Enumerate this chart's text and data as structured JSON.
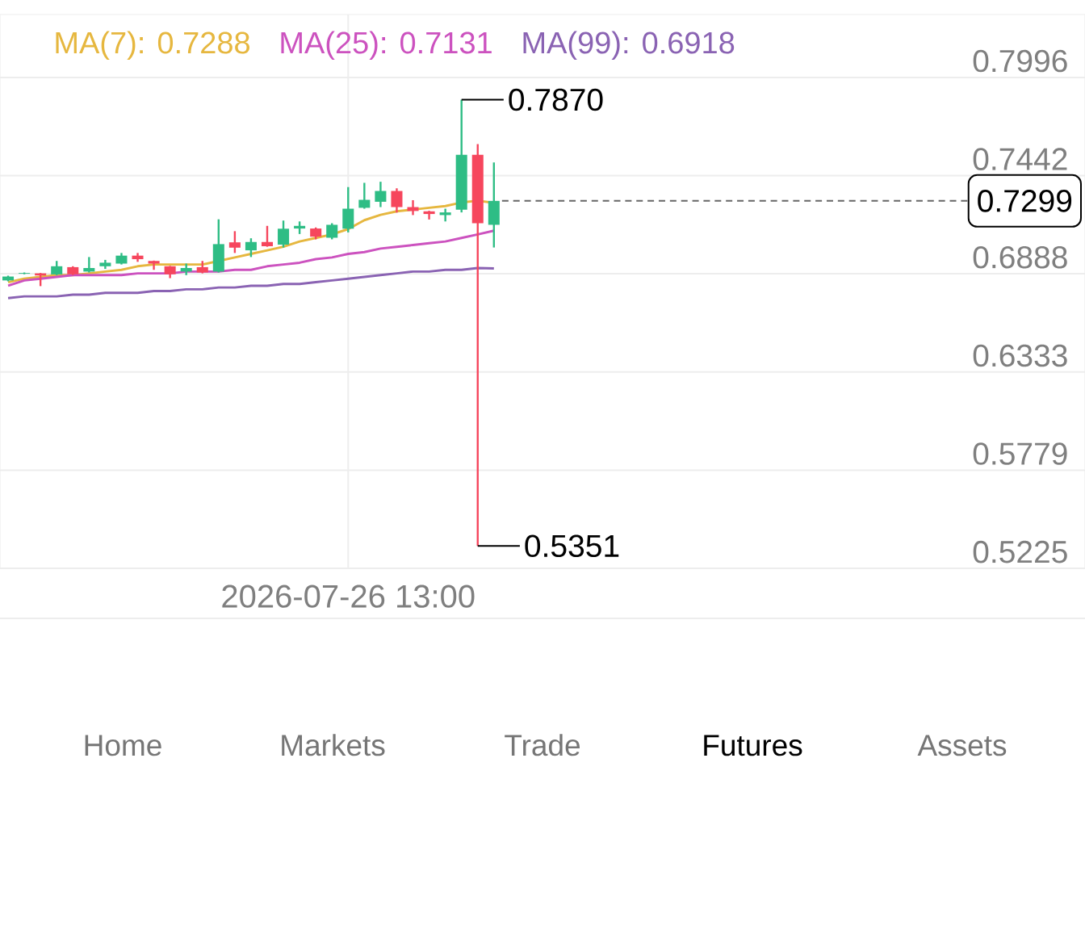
{
  "chart_data": {
    "type": "candlestick",
    "categories": [
      null,
      null,
      null,
      null,
      null,
      null,
      null,
      null,
      null,
      null,
      null,
      null,
      null,
      null,
      null,
      null,
      null,
      null,
      null,
      null,
      null,
      "2026-07-26 13:00",
      null,
      null,
      null,
      null,
      null,
      null,
      null,
      null,
      null,
      null,
      null,
      null,
      null,
      null,
      null,
      null,
      null,
      null,
      null,
      null,
      null,
      null,
      null,
      null,
      null,
      null,
      null,
      null,
      null,
      null,
      null,
      null,
      null,
      null,
      null,
      null,
      null,
      null,
      null,
      null,
      null,
      null,
      null,
      null,
      null
    ],
    "ohlc": [
      [
        0.685,
        0.6877,
        0.6845,
        0.6872
      ],
      [
        0.6888,
        0.6895,
        0.6885,
        0.6892
      ],
      [
        0.689,
        0.6892,
        0.6818,
        0.6878
      ],
      [
        0.6884,
        0.696,
        0.688,
        0.693
      ],
      [
        0.6925,
        0.693,
        0.688,
        0.6885
      ],
      [
        0.69,
        0.6982,
        0.6895,
        0.692
      ],
      [
        0.693,
        0.6966,
        0.6915,
        0.695
      ],
      [
        0.6945,
        0.7005,
        0.694,
        0.699
      ],
      [
        0.699,
        0.7005,
        0.6955,
        0.697
      ],
      [
        0.696,
        0.6962,
        0.691,
        0.6945
      ],
      [
        0.693,
        0.6932,
        0.6863,
        0.6885
      ],
      [
        0.69,
        0.6945,
        0.688,
        0.692
      ],
      [
        0.6925,
        0.696,
        0.689,
        0.6895
      ],
      [
        0.69,
        0.7195,
        0.6895,
        0.7055
      ],
      [
        0.7065,
        0.7128,
        0.7005,
        0.7035
      ],
      [
        0.702,
        0.7088,
        0.6982,
        0.7067
      ],
      [
        0.7067,
        0.7158,
        0.704,
        0.7043
      ],
      [
        0.7052,
        0.7188,
        0.7036,
        0.7142
      ],
      [
        0.7143,
        0.7183,
        0.7112,
        0.7158
      ],
      [
        0.7143,
        0.7149,
        0.7082,
        0.7097
      ],
      [
        0.7091,
        0.7173,
        0.7082,
        0.7164
      ],
      [
        0.7142,
        0.7377,
        0.7121,
        0.7255
      ],
      [
        0.726,
        0.7401,
        0.7255,
        0.7305
      ],
      [
        0.7294,
        0.7407,
        0.7264,
        0.7355
      ],
      [
        0.7355,
        0.737,
        0.7233,
        0.7264
      ],
      [
        0.7264,
        0.7303,
        0.7219,
        0.7242
      ],
      [
        0.724,
        0.7243,
        0.7194,
        0.7225
      ],
      [
        0.7219,
        0.7255,
        0.7183,
        0.7234
      ],
      [
        0.7249,
        0.787,
        0.7234,
        0.7559
      ],
      [
        0.7559,
        0.762,
        0.5351,
        0.7173
      ],
      [
        0.7164,
        0.7516,
        0.7036,
        0.7299
      ],
      null,
      null,
      null,
      null,
      null,
      null,
      null,
      null,
      null,
      null,
      null,
      null,
      null,
      null,
      null,
      null,
      null,
      null,
      null,
      null,
      null,
      null,
      null,
      null,
      null,
      null,
      null,
      null,
      null,
      null,
      null,
      null,
      null,
      null,
      null,
      null
    ],
    "colors": [
      "#2ebd85",
      "#2ebd85",
      "#f6465d",
      "#2ebd85",
      "#f6465d",
      "#2ebd85",
      "#2ebd85",
      "#2ebd85",
      "#f6465d",
      "#f6465d",
      "#f6465d",
      "#2ebd85",
      "#f6465d",
      "#2ebd85",
      "#f6465d",
      "#2ebd85",
      "#f6465d",
      "#2ebd85",
      "#2ebd85",
      "#f6465d",
      "#2ebd85",
      "#2ebd85",
      "#2ebd85",
      "#2ebd85",
      "#f6465d",
      "#f6465d",
      "#f6465d",
      "#2ebd85",
      "#2ebd85",
      "#f6465d",
      "#2ebd85",
      null,
      null,
      null,
      null,
      null,
      null,
      null,
      null,
      null,
      null,
      null,
      null,
      null,
      null,
      null,
      null,
      null,
      null,
      null,
      null,
      null,
      null,
      null,
      null,
      null,
      null,
      null,
      null,
      null,
      null,
      null,
      null,
      null,
      null,
      null,
      null
    ],
    "series": [
      {
        "name": "MA(7): 0.7288",
        "type": "line",
        "color": "#e6b73f",
        "values": [
          0.684,
          0.686,
          0.687,
          0.688,
          0.688,
          0.689,
          0.69,
          0.691,
          0.693,
          0.694,
          0.694,
          0.694,
          0.694,
          0.696,
          0.698,
          0.7,
          0.702,
          0.704,
          0.707,
          0.709,
          0.711,
          0.714,
          0.719,
          0.722,
          0.724,
          0.725,
          0.726,
          0.727,
          0.729,
          0.73,
          0.7288,
          null,
          null,
          null,
          null,
          null,
          null,
          null,
          null,
          null,
          null,
          null,
          null,
          null,
          null,
          null,
          null,
          null,
          null,
          null,
          null,
          null,
          null,
          null,
          null,
          null,
          null,
          null,
          null,
          null,
          null,
          null,
          null,
          null,
          null,
          null,
          null
        ]
      },
      {
        "name": "MA(25): 0.7131",
        "type": "line",
        "color": "#cc52bf",
        "values": [
          0.682,
          0.685,
          0.686,
          0.687,
          0.688,
          0.688,
          0.688,
          0.688,
          0.689,
          0.689,
          0.689,
          0.69,
          0.69,
          0.69,
          0.691,
          0.691,
          0.693,
          0.694,
          0.695,
          0.697,
          0.698,
          0.7,
          0.701,
          0.703,
          0.704,
          0.705,
          0.706,
          0.707,
          0.709,
          0.711,
          0.7131,
          null,
          null,
          null,
          null,
          null,
          null,
          null,
          null,
          null,
          null,
          null,
          null,
          null,
          null,
          null,
          null,
          null,
          null,
          null,
          null,
          null,
          null,
          null,
          null,
          null,
          null,
          null,
          null,
          null,
          null,
          null,
          null,
          null,
          null,
          null,
          null
        ]
      },
      {
        "name": "MA(99): 0.6918",
        "type": "line",
        "color": "#8a63b3",
        "values": [
          0.675,
          0.676,
          0.676,
          0.676,
          0.677,
          0.677,
          0.678,
          0.678,
          0.678,
          0.679,
          0.679,
          0.68,
          0.68,
          0.681,
          0.681,
          0.682,
          0.682,
          0.683,
          0.683,
          0.684,
          0.685,
          0.686,
          0.687,
          0.688,
          0.689,
          0.69,
          0.69,
          0.691,
          0.691,
          0.692,
          0.6918,
          null,
          null,
          null,
          null,
          null,
          null,
          null,
          null,
          null,
          null,
          null,
          null,
          null,
          null,
          null,
          null,
          null,
          null,
          null,
          null,
          null,
          null,
          null,
          null,
          null,
          null,
          null,
          null,
          null,
          null,
          null,
          null,
          null,
          null,
          null,
          null
        ]
      }
    ],
    "ylim": [
      0.5225,
      0.8351
    ],
    "yticks": [
      0.7996,
      0.7442,
      0.6888,
      0.6333,
      0.5779,
      0.5225
    ],
    "grid": true,
    "legend": "top left",
    "ref_lines": [
      {
        "axis": "y",
        "value": 0.7299,
        "label": "0.7299",
        "line_style": "dashed",
        "color": "#666666"
      }
    ],
    "annotations": [
      "0.7870",
      "0.5351",
      "Home",
      "Markets",
      "Trade",
      "Futures",
      "Assets"
    ]
  }
}
